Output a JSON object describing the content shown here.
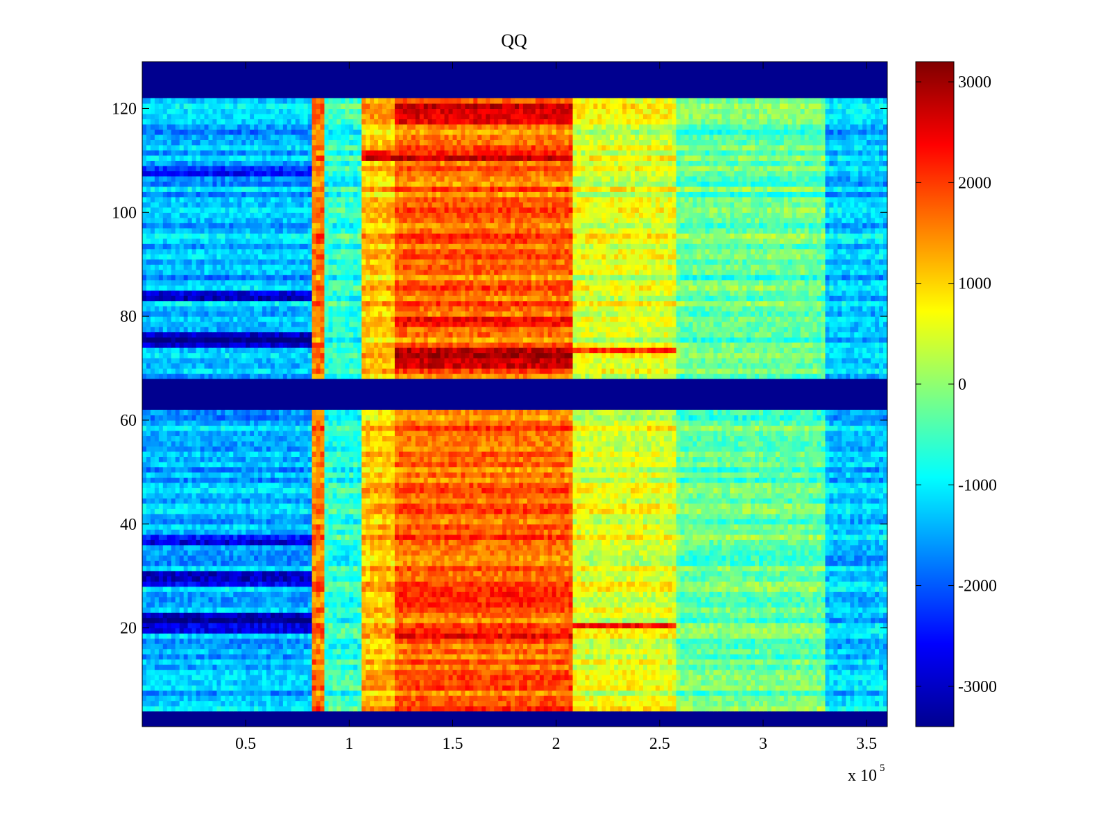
{
  "chart_data": {
    "type": "heatmap",
    "title": "QQ",
    "xlabel": "",
    "ylabel": "",
    "xlim": [
      0,
      360000
    ],
    "ylim": [
      1,
      129
    ],
    "x_multiplier_label": "x 10",
    "x_multiplier_exponent": "5",
    "x_ticks": [
      {
        "value": 50000,
        "label": "0.5"
      },
      {
        "value": 100000,
        "label": "1"
      },
      {
        "value": 150000,
        "label": "1.5"
      },
      {
        "value": 200000,
        "label": "2"
      },
      {
        "value": 250000,
        "label": "2.5"
      },
      {
        "value": 300000,
        "label": "3"
      },
      {
        "value": 350000,
        "label": "3.5"
      }
    ],
    "y_ticks": [
      {
        "value": 20,
        "label": "20"
      },
      {
        "value": 40,
        "label": "40"
      },
      {
        "value": 60,
        "label": "60"
      },
      {
        "value": 80,
        "label": "80"
      },
      {
        "value": 100,
        "label": "100"
      },
      {
        "value": 120,
        "label": "120"
      }
    ],
    "colormap": "jet",
    "color_range": [
      -3400,
      3200
    ],
    "colorbar_ticks": [
      {
        "value": 3000,
        "label": "3000"
      },
      {
        "value": 2000,
        "label": "2000"
      },
      {
        "value": 1000,
        "label": "1000"
      },
      {
        "value": 0,
        "label": "0"
      },
      {
        "value": -1000,
        "label": "-1000"
      },
      {
        "value": -2000,
        "label": "-2000"
      },
      {
        "value": -3000,
        "label": "-3000"
      }
    ],
    "blank_rows": [
      {
        "range": [
          122,
          129
        ],
        "value": -3400
      },
      {
        "range": [
          62,
          68
        ],
        "value": -3400
      },
      {
        "range": [
          1,
          4
        ],
        "value": -3400
      }
    ],
    "segments": [
      {
        "x": [
          0,
          82000
        ],
        "value": -1400
      },
      {
        "x": [
          82000,
          88000
        ],
        "value": 1600
      },
      {
        "x": [
          88000,
          106000
        ],
        "value": -700
      },
      {
        "x": [
          106000,
          122000
        ],
        "value": 1100
      },
      {
        "x": [
          122000,
          208000
        ],
        "value": 1700
      },
      {
        "x": [
          208000,
          258000
        ],
        "value": 500
      },
      {
        "x": [
          258000,
          330000
        ],
        "value": -300
      },
      {
        "x": [
          330000,
          360000
        ],
        "value": -1300
      }
    ],
    "strong_bands": [
      {
        "y": [
          70,
          74
        ],
        "x": [
          122000,
          208000
        ],
        "value": 2700
      },
      {
        "y": [
          78,
          80
        ],
        "x": [
          122000,
          208000
        ],
        "value": 2300
      },
      {
        "y": [
          110,
          112
        ],
        "x": [
          106000,
          208000
        ],
        "value": 2400
      },
      {
        "y": [
          117,
          121
        ],
        "x": [
          122000,
          208000
        ],
        "value": 2300
      },
      {
        "y": [
          24,
          27
        ],
        "x": [
          122000,
          208000
        ],
        "value": 2300
      },
      {
        "y": [
          17,
          19
        ],
        "x": [
          122000,
          208000
        ],
        "value": 2200
      },
      {
        "y": [
          74,
          77
        ],
        "x": [
          0,
          82000
        ],
        "value": -3000
      },
      {
        "y": [
          83,
          85
        ],
        "x": [
          0,
          82000
        ],
        "value": -2800
      },
      {
        "y": [
          19,
          23
        ],
        "x": [
          0,
          82000
        ],
        "value": -3000
      },
      {
        "y": [
          28,
          31
        ],
        "x": [
          0,
          82000
        ],
        "value": -2900
      },
      {
        "y": [
          36,
          38
        ],
        "x": [
          0,
          82000
        ],
        "value": -2800
      },
      {
        "y": [
          107,
          109
        ],
        "x": [
          0,
          82000
        ],
        "value": -2500
      },
      {
        "y": [
          73,
          74
        ],
        "x": [
          208000,
          258000
        ],
        "value": 2000
      },
      {
        "y": [
          20,
          21
        ],
        "x": [
          208000,
          258000
        ],
        "value": 2000
      }
    ],
    "grid": false,
    "colorbar": "right"
  }
}
